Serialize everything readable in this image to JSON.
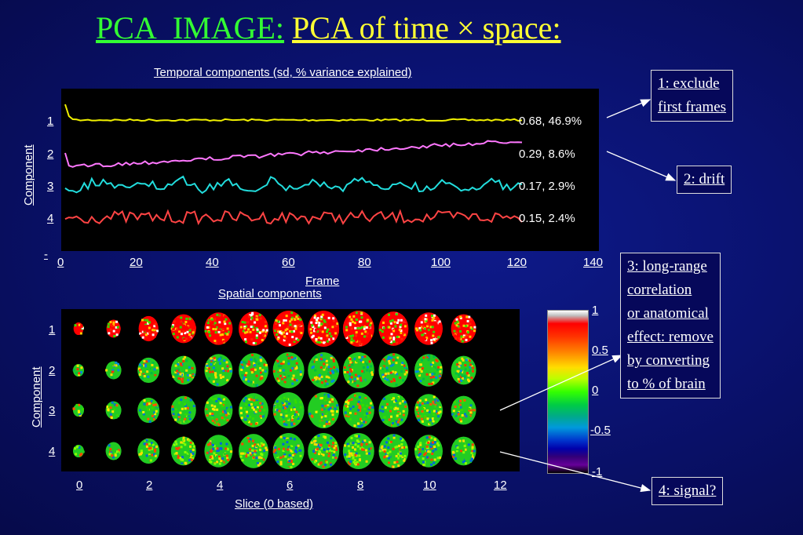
{
  "title": {
    "prefix": "PCA_IMAGE:",
    "main": "PCA of time × space:"
  },
  "temporal": {
    "title": "Temporal components (sd, % variance explained)",
    "ylabel": "Component",
    "xlabel": "Frame",
    "xticks": [
      "0",
      "20",
      "40",
      "60",
      "80",
      "100",
      "120",
      "140"
    ],
    "yticks": [
      "1",
      "2",
      "3",
      "4",
      "-"
    ],
    "series": [
      {
        "label": "0.68, 46.9%",
        "color": "#f0f000"
      },
      {
        "label": "0.29, 8.6%",
        "color": "#ff77ff"
      },
      {
        "label": "0.17, 2.9%",
        "color": "#22dddd"
      },
      {
        "label": "0.15, 2.4%",
        "color": "#ff4444"
      }
    ]
  },
  "spatial": {
    "title": "Spatial components",
    "ylabel": "Component",
    "xlabel": "Slice (0 based)",
    "xticks": [
      "0",
      "2",
      "4",
      "6",
      "8",
      "10",
      "12"
    ],
    "yticks": [
      "1",
      "2",
      "3",
      "4"
    ]
  },
  "colorbar": {
    "ticks": [
      "1",
      "0.5",
      "0",
      "-0.5",
      "-1"
    ]
  },
  "notes": {
    "n1": [
      "1: exclude",
      "first frames"
    ],
    "n2": [
      "2: drift"
    ],
    "n3": [
      "3: long-range ",
      "correlation",
      "or anatomical",
      "effect: remove",
      "by converting ",
      "to % of brain"
    ],
    "n4": [
      "4: signal?"
    ]
  }
}
